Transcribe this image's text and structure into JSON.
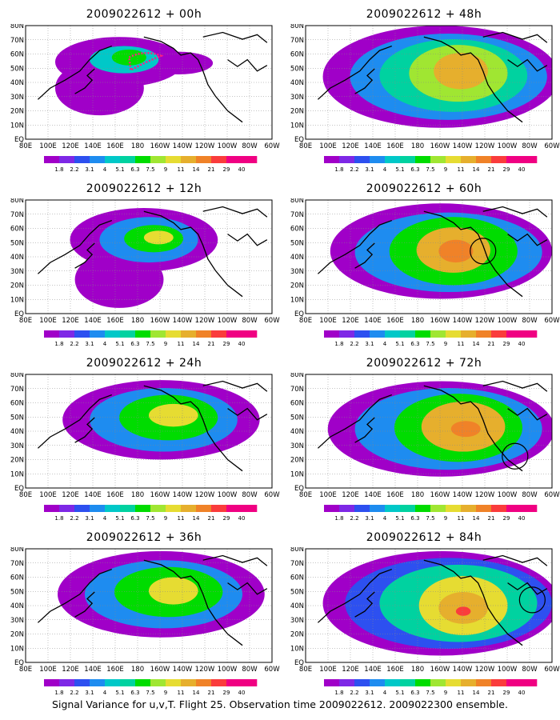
{
  "panels": [
    {
      "title": "2009022612 + 00h"
    },
    {
      "title": "2009022612 + 48h"
    },
    {
      "title": "2009022612 + 12h"
    },
    {
      "title": "2009022612 + 60h"
    },
    {
      "title": "2009022612 + 24h"
    },
    {
      "title": "2009022612 + 72h"
    },
    {
      "title": "2009022612 + 36h"
    },
    {
      "title": "2009022612 + 84h"
    }
  ],
  "lat_labels": [
    "EQ",
    "10N",
    "20N",
    "30N",
    "40N",
    "50N",
    "60N",
    "70N",
    "80N"
  ],
  "lon_labels": [
    "80E",
    "100E",
    "120E",
    "140E",
    "160E",
    "180",
    "160W",
    "140W",
    "120W",
    "100W",
    "80W",
    "60W"
  ],
  "colorbar": {
    "labels": [
      "1.8",
      "2.2",
      "3.1",
      "4",
      "5.1",
      "6.3",
      "7.5",
      "9",
      "11",
      "14",
      "21",
      "29",
      "40"
    ],
    "colors": [
      "#a000c8",
      "#7e28e6",
      "#2d50f0",
      "#1e8cf0",
      "#00c8c8",
      "#00d2a0",
      "#00dc00",
      "#a0e632",
      "#e6dc32",
      "#e6af2d",
      "#f08228",
      "#fa3c3c",
      "#f00082"
    ]
  },
  "caption": "Signal Variance for u,v,T. Flight 25. Observation time 2009022612. 2009022300 ensemble."
}
